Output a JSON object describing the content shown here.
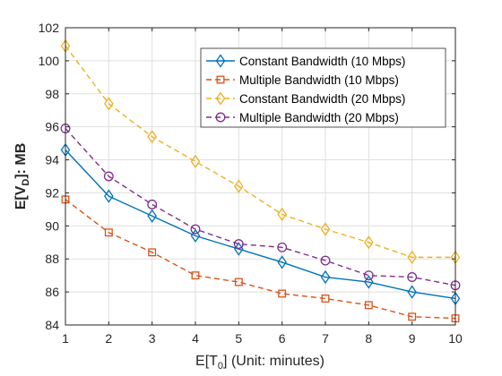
{
  "chart_data": {
    "type": "line",
    "xlabel": "E[T0] (Unit: minutes)",
    "xlabel_parts": {
      "pre": "E[T",
      "sub": "0",
      "post": "] (Unit: minutes)"
    },
    "ylabel": "E[VD]: MB",
    "ylabel_parts": {
      "pre": "E[V",
      "sub": "D",
      "post": "]: MB"
    },
    "xlim": [
      1,
      10
    ],
    "ylim": [
      84,
      102
    ],
    "xticks": [
      1,
      2,
      3,
      4,
      5,
      6,
      7,
      8,
      9,
      10
    ],
    "yticks": [
      84,
      86,
      88,
      90,
      92,
      94,
      96,
      98,
      100,
      102
    ],
    "grid": true,
    "legend_position": "top-right",
    "x": [
      1,
      2,
      3,
      4,
      5,
      6,
      7,
      8,
      9,
      10
    ],
    "series": [
      {
        "name": "Constant Bandwidth (10 Mbps)",
        "color": "#0072BD",
        "marker": "diamond",
        "line": "solid",
        "values": [
          94.6,
          91.8,
          90.6,
          89.4,
          88.6,
          87.8,
          86.9,
          86.6,
          86.0,
          85.6
        ]
      },
      {
        "name": "Multiple Bandwidth (10 Mbps)",
        "color": "#D95319",
        "marker": "square",
        "line": "dashed",
        "values": [
          91.6,
          89.6,
          88.4,
          87.0,
          86.6,
          85.9,
          85.6,
          85.2,
          84.5,
          84.4
        ]
      },
      {
        "name": "Constant Bandwidth (20 Mbps)",
        "color": "#EDB120",
        "marker": "diamond",
        "line": "dashed",
        "values": [
          100.9,
          97.4,
          95.4,
          93.9,
          92.4,
          90.7,
          89.8,
          89.0,
          88.1,
          88.1
        ]
      },
      {
        "name": "Multiple Bandwidth (20 Mbps)",
        "color": "#7E2F8E",
        "marker": "circle",
        "line": "dashed",
        "values": [
          95.9,
          93.0,
          91.3,
          89.8,
          88.9,
          88.7,
          87.9,
          87.0,
          86.9,
          86.4
        ]
      }
    ]
  }
}
